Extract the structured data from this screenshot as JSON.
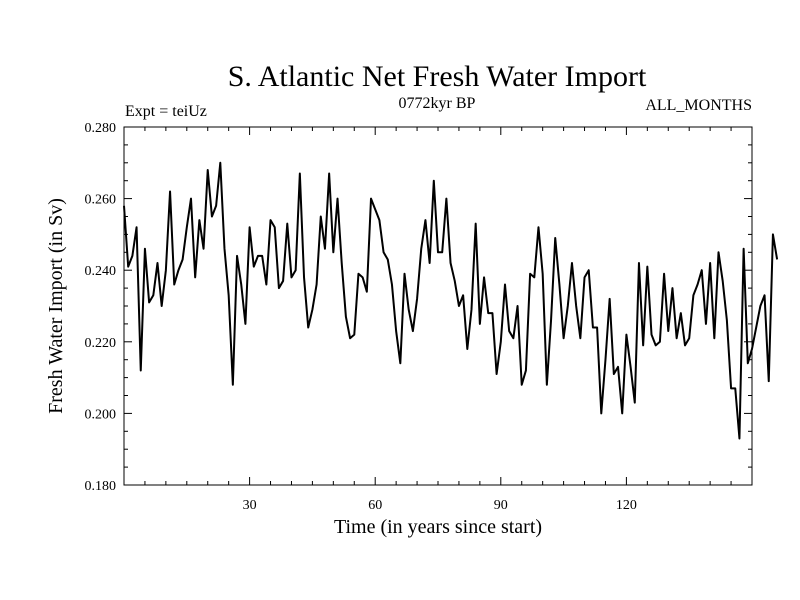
{
  "chart_data": {
    "type": "line",
    "title": "S. Atlantic Net Fresh Water Import",
    "subtitle_left": "Expt = teiUz",
    "subtitle_center": "0772kyr BP",
    "subtitle_right": "ALL_MONTHS",
    "xlabel": "Time (in years since start)",
    "ylabel": "Fresh Water Import (in Sv)",
    "xlim": [
      0,
      150
    ],
    "ylim": [
      0.18,
      0.28
    ],
    "x_ticks": [
      30,
      60,
      90,
      120
    ],
    "x_tick_labels": [
      "30",
      "60",
      "90",
      "120"
    ],
    "y_ticks": [
      0.18,
      0.2,
      0.22,
      0.24,
      0.26,
      0.28
    ],
    "y_tick_labels": [
      "0.180",
      "0.200",
      "0.220",
      "0.240",
      "0.260",
      "0.280"
    ],
    "grid": false,
    "series": [
      {
        "name": "Net Fresh Water Import",
        "color": "#000000",
        "x_start": 0,
        "x_step": 1,
        "values": [
          0.258,
          0.241,
          0.244,
          0.252,
          0.212,
          0.246,
          0.231,
          0.233,
          0.242,
          0.23,
          0.24,
          0.262,
          0.236,
          0.24,
          0.243,
          0.252,
          0.26,
          0.238,
          0.254,
          0.246,
          0.268,
          0.255,
          0.258,
          0.27,
          0.246,
          0.233,
          0.208,
          0.244,
          0.236,
          0.225,
          0.252,
          0.241,
          0.244,
          0.244,
          0.236,
          0.254,
          0.252,
          0.235,
          0.237,
          0.253,
          0.238,
          0.24,
          0.267,
          0.238,
          0.224,
          0.229,
          0.236,
          0.255,
          0.246,
          0.267,
          0.245,
          0.26,
          0.242,
          0.227,
          0.221,
          0.222,
          0.239,
          0.238,
          0.234,
          0.26,
          0.257,
          0.254,
          0.245,
          0.243,
          0.236,
          0.223,
          0.214,
          0.239,
          0.229,
          0.223,
          0.232,
          0.246,
          0.254,
          0.242,
          0.265,
          0.245,
          0.245,
          0.26,
          0.242,
          0.237,
          0.23,
          0.233,
          0.218,
          0.229,
          0.253,
          0.225,
          0.238,
          0.228,
          0.228,
          0.211,
          0.22,
          0.236,
          0.223,
          0.221,
          0.23,
          0.208,
          0.212,
          0.239,
          0.238,
          0.252,
          0.239,
          0.208,
          0.226,
          0.249,
          0.236,
          0.221,
          0.23,
          0.242,
          0.23,
          0.221,
          0.238,
          0.24,
          0.224,
          0.224,
          0.2,
          0.215,
          0.232,
          0.211,
          0.213,
          0.2,
          0.222,
          0.213,
          0.203,
          0.242,
          0.219,
          0.241,
          0.222,
          0.219,
          0.22,
          0.239,
          0.223,
          0.235,
          0.221,
          0.228,
          0.219,
          0.221,
          0.233,
          0.236,
          0.24,
          0.225,
          0.242,
          0.221,
          0.245,
          0.237,
          0.226,
          0.207,
          0.207,
          0.193,
          0.246,
          0.214,
          0.218,
          0.224,
          0.23,
          0.233,
          0.209,
          0.25,
          0.243
        ]
      }
    ]
  }
}
